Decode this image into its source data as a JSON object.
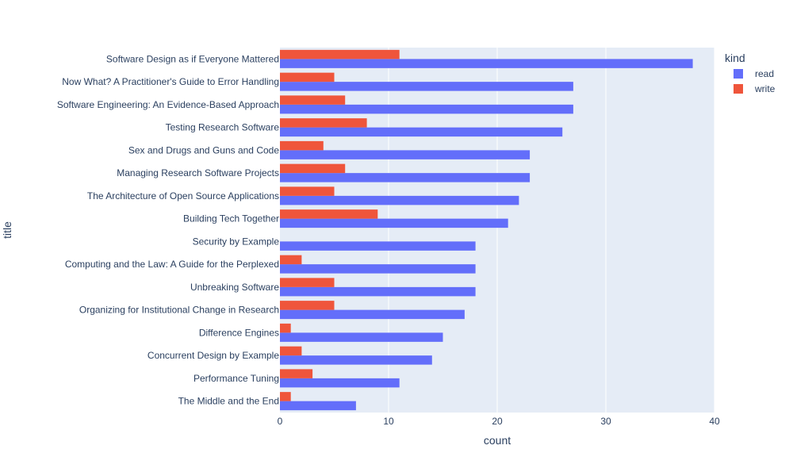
{
  "chart_data": {
    "type": "bar",
    "orientation": "horizontal",
    "barmode": "group",
    "xlabel": "count",
    "ylabel": "title",
    "xlim": [
      0,
      40
    ],
    "x_ticks": [
      0,
      10,
      20,
      30,
      40
    ],
    "grid": true,
    "legend": {
      "title": "kind",
      "placement": "right"
    },
    "categories": [
      "Software Design as if Everyone Mattered",
      "Now What? A Practitioner's Guide to Error Handling",
      "Software Engineering: An Evidence-Based Approach",
      "Testing Research Software",
      "Sex and Drugs and Guns and Code",
      "Managing Research Software Projects",
      "The Architecture of Open Source Applications",
      "Building Tech Together",
      "Security by Example",
      "Computing and the Law: A Guide for the Perplexed",
      "Unbreaking Software",
      "Organizing for Institutional Change in Research",
      "Difference Engines",
      "Concurrent Design by Example",
      "Performance Tuning",
      "The Middle and the End"
    ],
    "series": [
      {
        "name": "read",
        "color": "#636efa",
        "values": [
          38,
          27,
          27,
          26,
          23,
          23,
          22,
          21,
          18,
          18,
          18,
          17,
          15,
          14,
          11,
          7
        ]
      },
      {
        "name": "write",
        "color": "#ef553b",
        "values": [
          11,
          5,
          6,
          8,
          4,
          6,
          5,
          9,
          0,
          2,
          5,
          5,
          1,
          2,
          3,
          1
        ]
      }
    ]
  },
  "colors": {
    "plot_bg": "#e5ecf6",
    "grid": "#ffffff",
    "text": "#2a3f5f"
  }
}
